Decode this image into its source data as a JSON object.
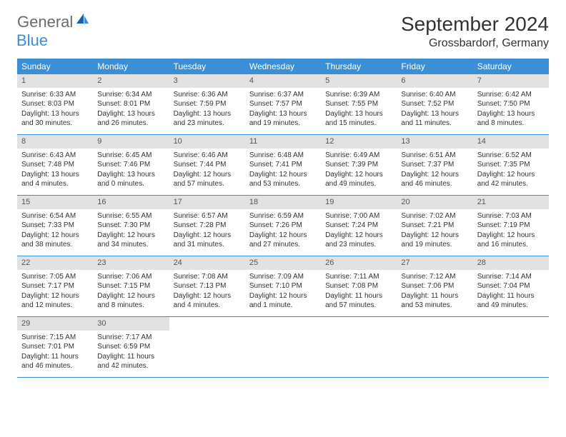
{
  "logo": {
    "part1": "General",
    "part2": "Blue"
  },
  "title": "September 2024",
  "location": "Grossbardorf, Germany",
  "colors": {
    "header_bg": "#3b8fd6",
    "header_text": "#ffffff",
    "daynum_bg": "#e2e2e2",
    "text": "#333333",
    "logo_gray": "#6b6b6b",
    "logo_blue": "#3b8fd6",
    "row_border": "#3b8fd6"
  },
  "day_headers": [
    "Sunday",
    "Monday",
    "Tuesday",
    "Wednesday",
    "Thursday",
    "Friday",
    "Saturday"
  ],
  "weeks": [
    [
      {
        "n": "1",
        "sunrise": "Sunrise: 6:33 AM",
        "sunset": "Sunset: 8:03 PM",
        "daylight": "Daylight: 13 hours and 30 minutes."
      },
      {
        "n": "2",
        "sunrise": "Sunrise: 6:34 AM",
        "sunset": "Sunset: 8:01 PM",
        "daylight": "Daylight: 13 hours and 26 minutes."
      },
      {
        "n": "3",
        "sunrise": "Sunrise: 6:36 AM",
        "sunset": "Sunset: 7:59 PM",
        "daylight": "Daylight: 13 hours and 23 minutes."
      },
      {
        "n": "4",
        "sunrise": "Sunrise: 6:37 AM",
        "sunset": "Sunset: 7:57 PM",
        "daylight": "Daylight: 13 hours and 19 minutes."
      },
      {
        "n": "5",
        "sunrise": "Sunrise: 6:39 AM",
        "sunset": "Sunset: 7:55 PM",
        "daylight": "Daylight: 13 hours and 15 minutes."
      },
      {
        "n": "6",
        "sunrise": "Sunrise: 6:40 AM",
        "sunset": "Sunset: 7:52 PM",
        "daylight": "Daylight: 13 hours and 11 minutes."
      },
      {
        "n": "7",
        "sunrise": "Sunrise: 6:42 AM",
        "sunset": "Sunset: 7:50 PM",
        "daylight": "Daylight: 13 hours and 8 minutes."
      }
    ],
    [
      {
        "n": "8",
        "sunrise": "Sunrise: 6:43 AM",
        "sunset": "Sunset: 7:48 PM",
        "daylight": "Daylight: 13 hours and 4 minutes."
      },
      {
        "n": "9",
        "sunrise": "Sunrise: 6:45 AM",
        "sunset": "Sunset: 7:46 PM",
        "daylight": "Daylight: 13 hours and 0 minutes."
      },
      {
        "n": "10",
        "sunrise": "Sunrise: 6:46 AM",
        "sunset": "Sunset: 7:44 PM",
        "daylight": "Daylight: 12 hours and 57 minutes."
      },
      {
        "n": "11",
        "sunrise": "Sunrise: 6:48 AM",
        "sunset": "Sunset: 7:41 PM",
        "daylight": "Daylight: 12 hours and 53 minutes."
      },
      {
        "n": "12",
        "sunrise": "Sunrise: 6:49 AM",
        "sunset": "Sunset: 7:39 PM",
        "daylight": "Daylight: 12 hours and 49 minutes."
      },
      {
        "n": "13",
        "sunrise": "Sunrise: 6:51 AM",
        "sunset": "Sunset: 7:37 PM",
        "daylight": "Daylight: 12 hours and 46 minutes."
      },
      {
        "n": "14",
        "sunrise": "Sunrise: 6:52 AM",
        "sunset": "Sunset: 7:35 PM",
        "daylight": "Daylight: 12 hours and 42 minutes."
      }
    ],
    [
      {
        "n": "15",
        "sunrise": "Sunrise: 6:54 AM",
        "sunset": "Sunset: 7:33 PM",
        "daylight": "Daylight: 12 hours and 38 minutes."
      },
      {
        "n": "16",
        "sunrise": "Sunrise: 6:55 AM",
        "sunset": "Sunset: 7:30 PM",
        "daylight": "Daylight: 12 hours and 34 minutes."
      },
      {
        "n": "17",
        "sunrise": "Sunrise: 6:57 AM",
        "sunset": "Sunset: 7:28 PM",
        "daylight": "Daylight: 12 hours and 31 minutes."
      },
      {
        "n": "18",
        "sunrise": "Sunrise: 6:59 AM",
        "sunset": "Sunset: 7:26 PM",
        "daylight": "Daylight: 12 hours and 27 minutes."
      },
      {
        "n": "19",
        "sunrise": "Sunrise: 7:00 AM",
        "sunset": "Sunset: 7:24 PM",
        "daylight": "Daylight: 12 hours and 23 minutes."
      },
      {
        "n": "20",
        "sunrise": "Sunrise: 7:02 AM",
        "sunset": "Sunset: 7:21 PM",
        "daylight": "Daylight: 12 hours and 19 minutes."
      },
      {
        "n": "21",
        "sunrise": "Sunrise: 7:03 AM",
        "sunset": "Sunset: 7:19 PM",
        "daylight": "Daylight: 12 hours and 16 minutes."
      }
    ],
    [
      {
        "n": "22",
        "sunrise": "Sunrise: 7:05 AM",
        "sunset": "Sunset: 7:17 PM",
        "daylight": "Daylight: 12 hours and 12 minutes."
      },
      {
        "n": "23",
        "sunrise": "Sunrise: 7:06 AM",
        "sunset": "Sunset: 7:15 PM",
        "daylight": "Daylight: 12 hours and 8 minutes."
      },
      {
        "n": "24",
        "sunrise": "Sunrise: 7:08 AM",
        "sunset": "Sunset: 7:13 PM",
        "daylight": "Daylight: 12 hours and 4 minutes."
      },
      {
        "n": "25",
        "sunrise": "Sunrise: 7:09 AM",
        "sunset": "Sunset: 7:10 PM",
        "daylight": "Daylight: 12 hours and 1 minute."
      },
      {
        "n": "26",
        "sunrise": "Sunrise: 7:11 AM",
        "sunset": "Sunset: 7:08 PM",
        "daylight": "Daylight: 11 hours and 57 minutes."
      },
      {
        "n": "27",
        "sunrise": "Sunrise: 7:12 AM",
        "sunset": "Sunset: 7:06 PM",
        "daylight": "Daylight: 11 hours and 53 minutes."
      },
      {
        "n": "28",
        "sunrise": "Sunrise: 7:14 AM",
        "sunset": "Sunset: 7:04 PM",
        "daylight": "Daylight: 11 hours and 49 minutes."
      }
    ],
    [
      {
        "n": "29",
        "sunrise": "Sunrise: 7:15 AM",
        "sunset": "Sunset: 7:01 PM",
        "daylight": "Daylight: 11 hours and 46 minutes."
      },
      {
        "n": "30",
        "sunrise": "Sunrise: 7:17 AM",
        "sunset": "Sunset: 6:59 PM",
        "daylight": "Daylight: 11 hours and 42 minutes."
      },
      null,
      null,
      null,
      null,
      null
    ]
  ]
}
